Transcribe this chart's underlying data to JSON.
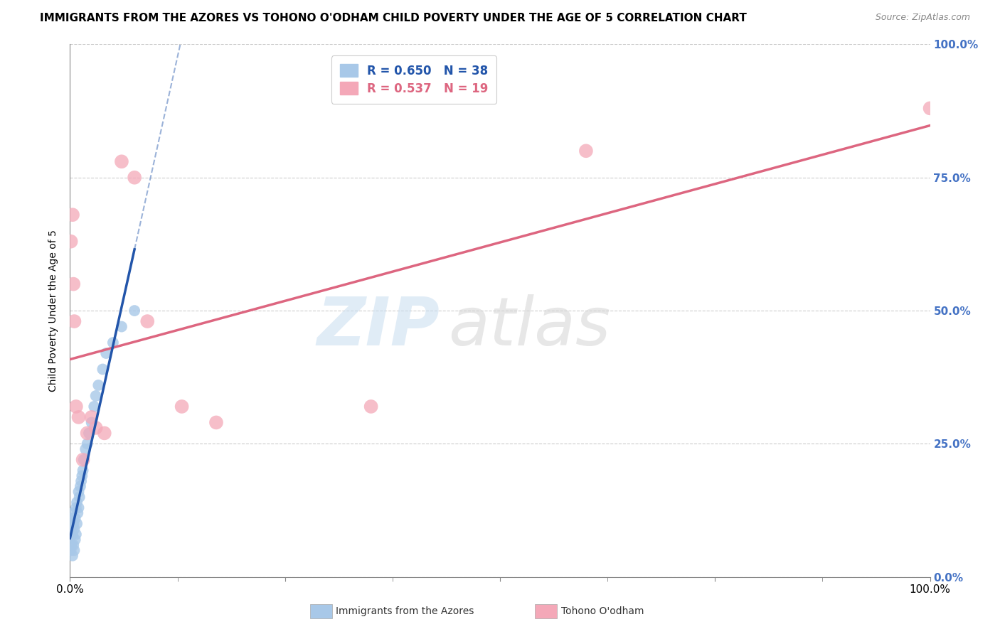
{
  "title": "IMMIGRANTS FROM THE AZORES VS TOHONO O'ODHAM CHILD POVERTY UNDER THE AGE OF 5 CORRELATION CHART",
  "source": "Source: ZipAtlas.com",
  "ylabel": "Child Poverty Under the Age of 5",
  "legend_label1": "Immigrants from the Azores",
  "legend_label2": "Tohono O'odham",
  "R1": 0.65,
  "N1": 38,
  "R2": 0.537,
  "N2": 19,
  "color1": "#a8c8e8",
  "color2": "#f4a8b8",
  "line_color1": "#2255aa",
  "line_color2": "#dd6680",
  "watermark1": "ZIP",
  "watermark2": "atlas",
  "blue_x": [
    0.001,
    0.001,
    0.002,
    0.002,
    0.003,
    0.003,
    0.003,
    0.004,
    0.004,
    0.005,
    0.005,
    0.006,
    0.006,
    0.007,
    0.007,
    0.008,
    0.008,
    0.009,
    0.01,
    0.01,
    0.011,
    0.012,
    0.013,
    0.014,
    0.015,
    0.016,
    0.018,
    0.02,
    0.022,
    0.025,
    0.028,
    0.03,
    0.033,
    0.038,
    0.042,
    0.05,
    0.06,
    0.075
  ],
  "blue_y": [
    0.05,
    0.09,
    0.06,
    0.11,
    0.04,
    0.08,
    0.12,
    0.06,
    0.1,
    0.05,
    0.09,
    0.07,
    0.11,
    0.08,
    0.13,
    0.1,
    0.14,
    0.12,
    0.13,
    0.16,
    0.15,
    0.17,
    0.18,
    0.19,
    0.2,
    0.22,
    0.24,
    0.25,
    0.27,
    0.29,
    0.32,
    0.34,
    0.36,
    0.39,
    0.42,
    0.44,
    0.47,
    0.5
  ],
  "pink_x": [
    0.001,
    0.003,
    0.004,
    0.005,
    0.007,
    0.01,
    0.015,
    0.02,
    0.025,
    0.03,
    0.04,
    0.06,
    0.075,
    0.09,
    0.13,
    0.17,
    0.35,
    0.6,
    1.0
  ],
  "pink_y": [
    0.63,
    0.68,
    0.55,
    0.48,
    0.32,
    0.3,
    0.22,
    0.27,
    0.3,
    0.28,
    0.27,
    0.78,
    0.75,
    0.48,
    0.32,
    0.29,
    0.32,
    0.8,
    0.88
  ],
  "xmin": 0.0,
  "xmax": 1.0,
  "ymin": 0.0,
  "ymax": 1.0,
  "yticks": [
    0.0,
    0.25,
    0.5,
    0.75,
    1.0
  ],
  "ytick_labels": [
    "0.0%",
    "25.0%",
    "50.0%",
    "75.0%",
    "100.0%"
  ],
  "xtick_positions": [
    0.0,
    0.25,
    0.5,
    0.75,
    1.0
  ],
  "xtick_labels": [
    "0.0%",
    "",
    "",
    "",
    "100.0%"
  ],
  "grid_color": "#cccccc",
  "bg_color": "#ffffff",
  "title_fontsize": 11,
  "ylabel_fontsize": 10,
  "tick_fontsize": 11,
  "source_fontsize": 9,
  "legend_fontsize": 12
}
